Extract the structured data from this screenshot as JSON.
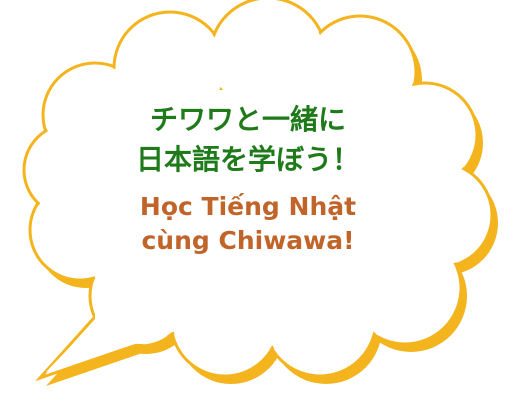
{
  "headline_ja": {
    "line1": "チワワと一緒に",
    "line2": "日本語を学ぼう！"
  },
  "headline_vi": {
    "line1": "Học Tiếng Nhật",
    "line2": "cùng Chiwawa!"
  },
  "colors": {
    "japanese_text": "#1f7a1a",
    "vietnamese_text": "#c0642a",
    "bubble_outline": "#f4b41e",
    "bubble_fill": "#ffffff"
  }
}
